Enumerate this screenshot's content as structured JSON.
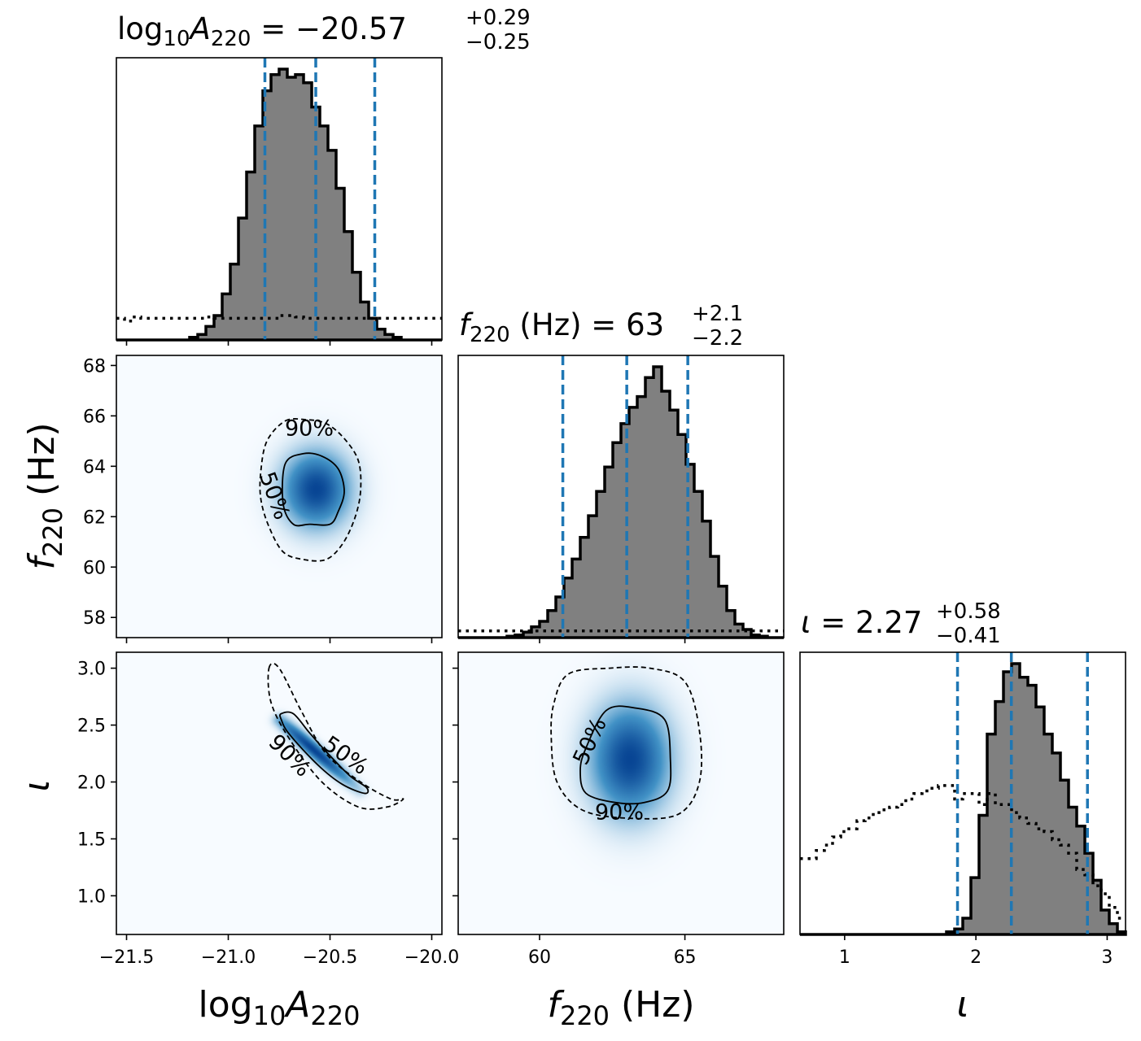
{
  "titles": {
    "p0": {
      "base": "log",
      "sub1": "10",
      "var": "A",
      "sub2": "220",
      "eq": " = −20.57",
      "sup": "+0.29",
      "sub": "−0.25"
    },
    "p1": {
      "var": "f",
      "sub1": "220",
      "rest": " (Hz) = 63",
      "sup": "+2.1",
      "sub": "−2.2"
    },
    "p2": {
      "var": "ι",
      "eq": " = 2.27",
      "sup": "+0.58",
      "sub": "−0.41"
    }
  },
  "axis_labels": {
    "x0": {
      "base": "log",
      "sub1": "10",
      "var": "A",
      "sub2": "220"
    },
    "x1": {
      "var": "f",
      "sub1": "220",
      "rest": " (Hz)"
    },
    "x2": {
      "var": "ι"
    },
    "y1": {
      "var": "f",
      "sub1": "220",
      "rest": " (Hz)"
    },
    "y2": {
      "var": "ι"
    }
  },
  "contour_labels": {
    "p90": "90%",
    "p50": "50%"
  },
  "colors": {
    "hist_fill": "#808080",
    "quantile_line": "#1f77b4",
    "density": "#08519c"
  },
  "chart_data": {
    "type": "corner",
    "parameters": [
      "log10A220",
      "f220",
      "iota"
    ],
    "ranges": {
      "log10A220": [
        -21.55,
        -19.95
      ],
      "f220": [
        57.2,
        68.4
      ],
      "iota": [
        0.66,
        3.14
      ]
    },
    "ticks": {
      "log10A220": [
        -21.5,
        -21.0,
        -20.5,
        -20.0
      ],
      "f220": [
        58,
        60,
        62,
        64,
        66,
        68
      ],
      "f220_x": [
        60,
        65
      ],
      "iota": [
        1.0,
        1.5,
        2.0,
        2.5,
        3.0
      ],
      "iota_x": [
        1,
        2,
        3
      ]
    },
    "tick_labels": {
      "log10A220": [
        "−21.5",
        "−21.0",
        "−20.5",
        "−20.0"
      ],
      "f220": [
        "58",
        "60",
        "62",
        "64",
        "66",
        "68"
      ],
      "f220_x": [
        "60",
        "65"
      ],
      "iota": [
        "1.0",
        "1.5",
        "2.0",
        "2.5",
        "3.0"
      ],
      "iota_x": [
        "1",
        "2",
        "3"
      ]
    },
    "posterior_summary": {
      "log10A220": {
        "median": -20.57,
        "plus": 0.29,
        "minus": 0.25,
        "quantiles": [
          -20.82,
          -20.57,
          -20.28
        ]
      },
      "f220": {
        "median": 63,
        "plus": 2.1,
        "minus": 2.2,
        "quantiles": [
          60.8,
          63.0,
          65.1
        ]
      },
      "iota": {
        "median": 2.27,
        "plus": 0.58,
        "minus": 0.41,
        "quantiles": [
          1.86,
          2.27,
          2.85
        ]
      }
    },
    "histograms": {
      "log10A220": {
        "min": -21.55,
        "max": -19.95,
        "bins": 40,
        "posterior": [
          0,
          0,
          0,
          0,
          0,
          0,
          0,
          0,
          0,
          0.01,
          0.02,
          0.05,
          0.09,
          0.17,
          0.28,
          0.45,
          0.62,
          0.79,
          0.92,
          0.98,
          1.0,
          0.97,
          0.98,
          0.95,
          0.86,
          0.79,
          0.7,
          0.56,
          0.4,
          0.25,
          0.14,
          0.08,
          0.04,
          0.02,
          0.01,
          0,
          0,
          0,
          0,
          0
        ],
        "prior": [
          0.08,
          0.07,
          0.085,
          0.08,
          0.08,
          0.08,
          0.08,
          0.08,
          0.08,
          0.08,
          0.08,
          0.085,
          0.08,
          0.08,
          0.08,
          0.08,
          0.08,
          0.08,
          0.08,
          0.08,
          0.09,
          0.09,
          0.085,
          0.08,
          0.08,
          0.08,
          0.08,
          0.08,
          0.08,
          0.08,
          0.08,
          0.08,
          0.08,
          0.08,
          0.08,
          0.08,
          0.08,
          0.08,
          0.08,
          0.08
        ]
      },
      "f220": {
        "min": 57.2,
        "max": 68.4,
        "bins": 40,
        "posterior": [
          0,
          0,
          0,
          0,
          0,
          0,
          0.005,
          0.01,
          0.02,
          0.04,
          0.06,
          0.1,
          0.15,
          0.22,
          0.29,
          0.37,
          0.45,
          0.54,
          0.63,
          0.72,
          0.79,
          0.85,
          0.89,
          0.96,
          1.0,
          0.91,
          0.84,
          0.75,
          0.64,
          0.54,
          0.43,
          0.3,
          0.19,
          0.1,
          0.05,
          0.03,
          0.01,
          0.005,
          0,
          0
        ],
        "prior": [
          0.025,
          0.025,
          0.025,
          0.025,
          0.025,
          0.025,
          0.025,
          0.025,
          0.025,
          0.025,
          0.025,
          0.025,
          0.025,
          0.025,
          0.025,
          0.025,
          0.025,
          0.025,
          0.025,
          0.025,
          0.025,
          0.025,
          0.025,
          0.025,
          0.025,
          0.025,
          0.025,
          0.025,
          0.025,
          0.025,
          0.025,
          0.025,
          0.025,
          0.025,
          0.025,
          0.025,
          0.025,
          0.025,
          0.025,
          0.025
        ]
      },
      "iota": {
        "min": 0.66,
        "max": 3.14,
        "bins": 40,
        "posterior": [
          0,
          0,
          0,
          0,
          0,
          0,
          0,
          0,
          0,
          0,
          0,
          0,
          0,
          0,
          0,
          0,
          0,
          0,
          0.01,
          0.02,
          0.06,
          0.21,
          0.44,
          0.74,
          0.86,
          0.97,
          1.0,
          0.95,
          0.92,
          0.84,
          0.74,
          0.67,
          0.57,
          0.47,
          0.4,
          0.3,
          0.2,
          0.09,
          0.04,
          0.01
        ],
        "prior": [
          0.28,
          0.28,
          0.31,
          0.33,
          0.36,
          0.38,
          0.39,
          0.42,
          0.43,
          0.45,
          0.46,
          0.47,
          0.48,
          0.5,
          0.52,
          0.53,
          0.54,
          0.55,
          0.55,
          0.5,
          0.52,
          0.52,
          0.48,
          0.52,
          0.48,
          0.48,
          0.45,
          0.43,
          0.41,
          0.39,
          0.38,
          0.35,
          0.33,
          0.3,
          0.24,
          0.22,
          0.18,
          0.15,
          0.1,
          0.06
        ]
      }
    },
    "density_2d": {
      "f220_vs_log10A220": {
        "center": [
          -20.57,
          63.1
        ],
        "sigma": [
          0.11,
          1.0
        ]
      },
      "iota_vs_log10A220": {
        "band": true,
        "start": [
          -20.75,
          2.55
        ],
        "end": [
          -20.35,
          1.92
        ],
        "peak": [
          -20.58,
          2.3
        ]
      },
      "iota_vs_f220": {
        "center": [
          63.1,
          2.2
        ],
        "sigma": [
          0.9,
          0.32
        ]
      }
    },
    "contours": {
      "f220_vs_log10A220": {
        "p90": [
          [
            -20.72,
            65.8
          ],
          [
            -20.62,
            65.85
          ],
          [
            -20.52,
            65.7
          ],
          [
            -20.43,
            65.1
          ],
          [
            -20.36,
            64.2
          ],
          [
            -20.35,
            63.0
          ],
          [
            -20.38,
            61.9
          ],
          [
            -20.44,
            60.9
          ],
          [
            -20.52,
            60.3
          ],
          [
            -20.63,
            60.3
          ],
          [
            -20.73,
            60.6
          ],
          [
            -20.8,
            61.6
          ],
          [
            -20.84,
            62.7
          ],
          [
            -20.84,
            63.8
          ],
          [
            -20.81,
            65.0
          ]
        ],
        "p50": [
          [
            -20.72,
            64.1
          ],
          [
            -20.63,
            64.5
          ],
          [
            -20.54,
            64.4
          ],
          [
            -20.46,
            63.9
          ],
          [
            -20.43,
            63.0
          ],
          [
            -20.46,
            62.2
          ],
          [
            -20.5,
            61.7
          ],
          [
            -20.6,
            61.7
          ],
          [
            -20.68,
            61.7
          ],
          [
            -20.73,
            62.5
          ]
        ]
      },
      "iota_vs_log10A220": {
        "p90": [
          [
            -20.8,
            3.0
          ],
          [
            -20.75,
            3.0
          ],
          [
            -20.64,
            2.62
          ],
          [
            -20.52,
            2.25
          ],
          [
            -20.35,
            2.0
          ],
          [
            -20.2,
            1.85
          ],
          [
            -20.14,
            1.85
          ],
          [
            -20.22,
            1.78
          ],
          [
            -20.36,
            1.78
          ],
          [
            -20.54,
            2.0
          ],
          [
            -20.7,
            2.38
          ],
          [
            -20.79,
            2.7
          ]
        ],
        "p50": [
          [
            -20.74,
            2.6
          ],
          [
            -20.68,
            2.6
          ],
          [
            -20.6,
            2.43
          ],
          [
            -20.5,
            2.23
          ],
          [
            -20.4,
            2.05
          ],
          [
            -20.32,
            1.95
          ],
          [
            -20.33,
            1.9
          ],
          [
            -20.44,
            1.98
          ],
          [
            -20.56,
            2.15
          ],
          [
            -20.7,
            2.42
          ],
          [
            -20.74,
            2.55
          ]
        ]
      },
      "iota_vs_f220": {
        "p90": [
          [
            61.0,
            2.95
          ],
          [
            62.4,
            3.0
          ],
          [
            63.8,
            3.0
          ],
          [
            65.0,
            2.88
          ],
          [
            65.5,
            2.45
          ],
          [
            65.5,
            2.0
          ],
          [
            64.8,
            1.72
          ],
          [
            63.2,
            1.68
          ],
          [
            61.5,
            1.75
          ],
          [
            60.6,
            2.0
          ],
          [
            60.4,
            2.4
          ],
          [
            60.5,
            2.7
          ]
        ],
        "p50": [
          [
            61.6,
            2.3
          ],
          [
            62.3,
            2.63
          ],
          [
            63.3,
            2.65
          ],
          [
            64.3,
            2.55
          ],
          [
            64.5,
            2.2
          ],
          [
            64.4,
            1.92
          ],
          [
            63.6,
            1.82
          ],
          [
            62.6,
            1.82
          ],
          [
            61.6,
            1.9
          ],
          [
            61.4,
            2.1
          ]
        ]
      }
    }
  }
}
